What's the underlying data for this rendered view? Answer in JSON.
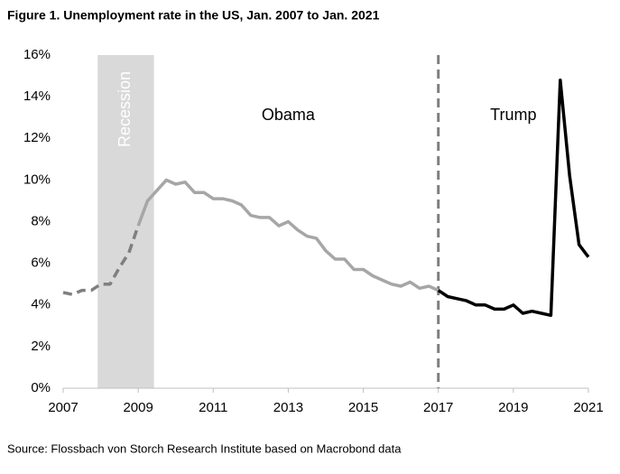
{
  "chart_data": {
    "type": "line",
    "title": "Figure 1. Unemployment rate in the US, Jan. 2007 to Jan. 2021",
    "source": "Source: Flossbach von Storch Research Institute based on Macrobond data",
    "x": [
      2007,
      2007.25,
      2007.5,
      2007.75,
      2008,
      2008.25,
      2008.5,
      2008.75,
      2009,
      2009.25,
      2009.5,
      2009.75,
      2010,
      2010.25,
      2010.5,
      2010.75,
      2011,
      2011.25,
      2011.5,
      2011.75,
      2012,
      2012.25,
      2012.5,
      2012.75,
      2013,
      2013.25,
      2013.5,
      2013.75,
      2014,
      2014.25,
      2014.5,
      2014.75,
      2015,
      2015.25,
      2015.5,
      2015.75,
      2016,
      2016.25,
      2016.5,
      2016.75,
      2017,
      2017.25,
      2017.5,
      2017.75,
      2018,
      2018.25,
      2018.5,
      2018.75,
      2019,
      2019.25,
      2019.5,
      2019.75,
      2020,
      2020.25,
      2020.5,
      2020.75,
      2021
    ],
    "series": [
      {
        "color": "#7f7f7f",
        "dashed": true,
        "values": [
          4.6,
          4.5,
          4.7,
          4.7,
          5.0,
          5.0,
          5.8,
          6.5,
          7.8,
          null,
          null,
          null,
          null,
          null,
          null,
          null,
          null,
          null,
          null,
          null,
          null,
          null,
          null,
          null,
          null,
          null,
          null,
          null,
          null,
          null,
          null,
          null,
          null,
          null,
          null,
          null,
          null,
          null,
          null,
          null,
          null,
          null,
          null,
          null,
          null,
          null,
          null,
          null,
          null,
          null,
          null,
          null,
          null,
          null,
          null,
          null,
          null
        ]
      },
      {
        "label": "Obama",
        "color": "#a6a6a6",
        "dashed": false,
        "values": [
          null,
          null,
          null,
          null,
          null,
          null,
          null,
          null,
          7.8,
          9.0,
          9.5,
          10.0,
          9.8,
          9.9,
          9.4,
          9.4,
          9.1,
          9.1,
          9.0,
          8.8,
          8.3,
          8.2,
          8.2,
          7.8,
          8.0,
          7.6,
          7.3,
          7.2,
          6.6,
          6.2,
          6.2,
          5.7,
          5.7,
          5.4,
          5.2,
          5.0,
          4.9,
          5.1,
          4.8,
          4.9,
          4.7,
          null,
          null,
          null,
          null,
          null,
          null,
          null,
          null,
          null,
          null,
          null,
          null,
          null,
          null,
          null,
          null
        ]
      },
      {
        "label": "Trump",
        "color": "#000000",
        "dashed": false,
        "values": [
          null,
          null,
          null,
          null,
          null,
          null,
          null,
          null,
          null,
          null,
          null,
          null,
          null,
          null,
          null,
          null,
          null,
          null,
          null,
          null,
          null,
          null,
          null,
          null,
          null,
          null,
          null,
          null,
          null,
          null,
          null,
          null,
          null,
          null,
          null,
          null,
          null,
          null,
          null,
          null,
          4.7,
          4.4,
          4.3,
          4.2,
          4.0,
          4.0,
          3.8,
          3.8,
          4.0,
          3.6,
          3.7,
          3.6,
          3.5,
          14.8,
          10.2,
          6.9,
          6.3
        ]
      }
    ],
    "spans": [
      {
        "label": "Recession",
        "x": [
          2007.92,
          2009.42
        ],
        "color": "#d9d9d9"
      }
    ],
    "vlines": [
      2017
    ],
    "xlim": [
      2007,
      2021
    ],
    "xticks": [
      2007,
      2009,
      2011,
      2013,
      2015,
      2017,
      2019,
      2021
    ],
    "ylim": [
      0,
      16
    ],
    "yticks": [
      {
        "value": 0,
        "label": "0%"
      },
      {
        "value": 2,
        "label": "2%"
      },
      {
        "value": 4,
        "label": "4%"
      },
      {
        "value": 6,
        "label": "6%"
      },
      {
        "value": 8,
        "label": "8%"
      },
      {
        "value": 10,
        "label": "10%"
      },
      {
        "value": 12,
        "label": "12%"
      },
      {
        "value": 14,
        "label": "14%"
      },
      {
        "value": 16,
        "label": "16%"
      }
    ],
    "grid": false
  }
}
